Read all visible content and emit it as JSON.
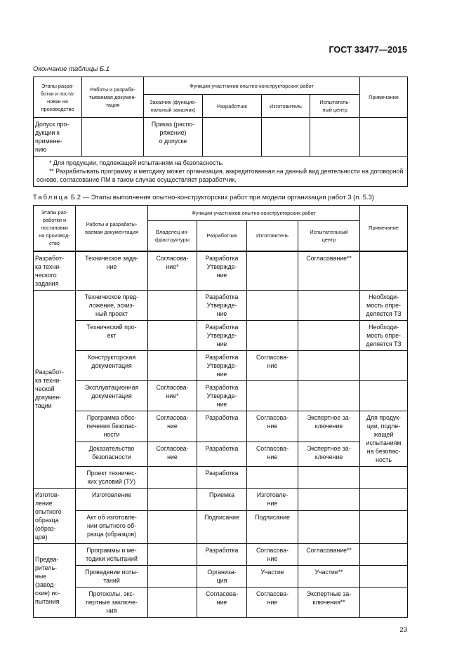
{
  "header": {
    "doc_code": "ГОСТ 33477—2015"
  },
  "table1": {
    "caption": "Окончание таблицы Б.1",
    "headers": {
      "stage": "Этапы разра-\nботки и поста-\nновки на\nпроизводство",
      "works": "Работы и разраба-\nтываемая докумен-\nтация",
      "functions": "Функции участников опытно-конструкторских работ",
      "roles": [
        "Заказчик (функцио-\nнальный заказчик)",
        "Разработчик",
        "Изготовитель",
        "Испытатель-\nный центр"
      ],
      "note": "Примечание"
    },
    "rows": [
      {
        "stage": "Допуск про-\nдукции      к\nпримене-\nнию",
        "works": "",
        "roles": [
          "Приказ (распо-\nряжение)\nо допуске",
          "",
          "",
          ""
        ],
        "note": ""
      }
    ],
    "footnotes": [
      "*   Для продукции, подлежащей испытаниям на безопасность.",
      "**  Разрабатывать программу и методику может организация, аккредитованная на данный вид деятельности на договорной основе, согласование ПМ в таком случае осуществляет разработчик."
    ]
  },
  "table2": {
    "caption_label": "Таблица",
    "caption_text": " Б.2 — Этапы выполнения опытно-конструкторских работ при модели организации работ 3 (п. 5.3)",
    "headers": {
      "stage": "Этапы раз-\nработки и\nпостановки\nна производ-\nство",
      "works": "Работы и разрабаты-\nваемая документация",
      "functions": "Функции участников опытно-конструкторских работ",
      "roles": [
        "Владелец ин-\nфраструктуры",
        "Разработчик",
        "Изготовитель",
        "Испытательный\nцентр"
      ],
      "note": "Примечание"
    },
    "groups": [
      {
        "stage": "Разработ-\nка   техни-\nческого\nзадания",
        "rows": [
          {
            "works": "Техническое зада-\nние",
            "roles": [
              "Согласова-\nние*",
              "Разработка\nУтвержде-\nние",
              "",
              "Согласование**"
            ],
            "note": ""
          }
        ]
      },
      {
        "stage": "Разработ-\nка   техни-\nческой\nдокумен-\nтации",
        "rows": [
          {
            "works": "Техническое пред-\nложение, эскиз-\nный проект",
            "roles": [
              "",
              "Разработка\nУтвержде-\nние",
              "",
              ""
            ],
            "note": "Необходи-\nмость опре-\nделяется ТЗ"
          },
          {
            "works": "Технический про-\nект",
            "roles": [
              "",
              "Разработка\nУтвержде-\nние",
              "",
              ""
            ],
            "note": "Необходи-\nмость опре-\nделяется ТЗ"
          },
          {
            "works": "Конструкторская\nдокументация",
            "roles": [
              "",
              "Разработка\nУтвержде-\nние",
              "Согласова-\nние",
              ""
            ],
            "note": ""
          },
          {
            "works": "Эксплуатационная\nдокументация",
            "roles": [
              "Согласова-\nние*",
              "Разработка\nУтвержде-\nние",
              "",
              ""
            ],
            "note": ""
          },
          {
            "works": "Программа обес-\nпечения безопас-\nности",
            "roles": [
              "Согласова-\nние",
              "Разработка",
              "Согласова-\nние",
              "Экспертное за-\nключение"
            ],
            "note": "Для продук-\nции, подле-\nжащей\nиспытаниям\nна безопас-\nность",
            "note_rows": 2
          },
          {
            "works": "Доказательство\nбезопасности",
            "roles": [
              "Согласова-\nние",
              "Разработка",
              "Согласова-\nние",
              "Экспертное за-\nключение"
            ],
            "note_merged": true
          },
          {
            "works": "Проект техничес-\nких условий (ТУ)",
            "roles": [
              "",
              "Разработка",
              "",
              ""
            ],
            "note": ""
          }
        ]
      },
      {
        "stage": "Изготов-\nление\nопытного\nобразца\n(образ-\nцов)",
        "rows": [
          {
            "works": "Изготовление",
            "roles": [
              "",
              "Приемка",
              "Изготовле-\nние",
              ""
            ],
            "note": ""
          },
          {
            "works": "Акт об изготовле-\nнии опытного об-\nразца (образцов)",
            "roles": [
              "",
              "Подписание",
              "Подписание",
              ""
            ],
            "note": ""
          }
        ]
      },
      {
        "stage": "Предва-\nритель-\nные\n(завод-\nские)   ис-\nпытания",
        "rows": [
          {
            "works": "Программы и ме-\nтодики испытаний",
            "roles": [
              "",
              "Разработка",
              "Согласова-\nние",
              "Согласование**"
            ],
            "note": ""
          },
          {
            "works": "Проведение испы-\nтаний",
            "roles": [
              "",
              "Организа-\nция",
              "Участие",
              "Участие**"
            ],
            "note": ""
          },
          {
            "works": "Протоколы, экс-\nпертные заключе-\nния",
            "roles": [
              "",
              "Согласова-\nние",
              "Согласова-\nние",
              "Экспертные за-\nключения**"
            ],
            "note": ""
          }
        ]
      }
    ]
  },
  "footer": {
    "page_number": "23"
  }
}
